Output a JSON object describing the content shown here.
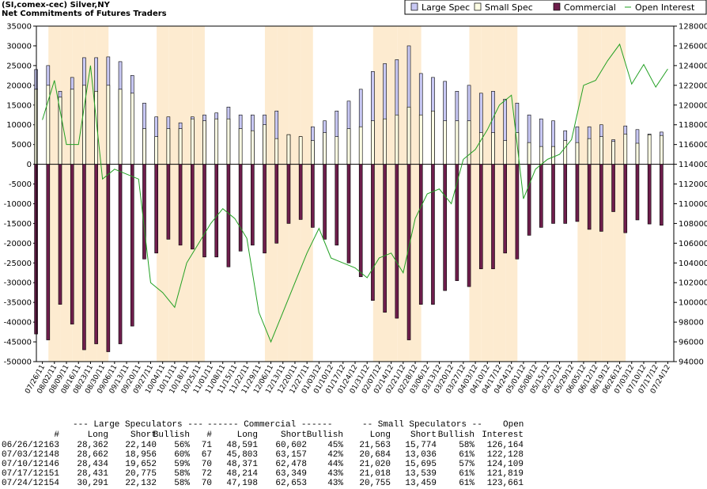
{
  "chart_data": {
    "type": "bar",
    "title": "(SI,comex-cec) Silver,NY",
    "subtitle": "Net Commitments of Futures Traders",
    "categories": [
      "07/26/11",
      "08/02/11",
      "08/09/11",
      "08/16/11",
      "08/23/11",
      "08/30/11",
      "09/06/11",
      "09/13/11",
      "09/20/11",
      "09/27/11",
      "10/04/11",
      "10/11/11",
      "10/18/11",
      "10/25/11",
      "11/01/11",
      "11/08/11",
      "11/15/11",
      "11/22/11",
      "11/29/11",
      "12/06/11",
      "12/13/11",
      "12/20/11",
      "12/27/11",
      "01/03/12",
      "01/10/12",
      "01/17/12",
      "01/24/12",
      "01/31/12",
      "02/07/12",
      "02/14/12",
      "02/21/12",
      "02/28/12",
      "03/06/12",
      "03/13/12",
      "03/20/12",
      "03/27/12",
      "04/03/12",
      "04/10/12",
      "04/17/12",
      "04/24/12",
      "05/01/12",
      "05/08/12",
      "05/15/12",
      "05/22/12",
      "05/29/12",
      "06/05/12",
      "06/12/12",
      "06/19/12",
      "06/26/12",
      "07/03/12",
      "07/10/12",
      "07/17/12",
      "07/24/12"
    ],
    "series": [
      {
        "name": "Large Spec",
        "color": "#c8c8f4",
        "values": [
          24000,
          25000,
          18500,
          22000,
          27000,
          27000,
          27200,
          26000,
          22500,
          15500,
          12000,
          12000,
          10500,
          12000,
          12500,
          13000,
          14500,
          12500,
          12500,
          12500,
          13500,
          7500,
          7000,
          9500,
          11000,
          13500,
          16000,
          19000,
          23500,
          25500,
          26500,
          30000,
          23000,
          22000,
          21000,
          18500,
          20000,
          18000,
          18500,
          16500,
          15500,
          12500,
          11500,
          11000,
          8500,
          9500,
          9500,
          10000,
          6222,
          9706,
          8782,
          7656,
          8159
        ]
      },
      {
        "name": "Small Spec",
        "color": "#fefee4",
        "values": [
          19000,
          20000,
          17000,
          19000,
          20000,
          18500,
          20000,
          19000,
          18000,
          9000,
          7000,
          9000,
          9000,
          11500,
          11000,
          11500,
          11500,
          9000,
          8500,
          10000,
          6500,
          7500,
          7000,
          6000,
          8000,
          7000,
          9000,
          9500,
          11000,
          11500,
          12500,
          14500,
          12500,
          13500,
          11000,
          11000,
          11000,
          8000,
          8000,
          6000,
          8000,
          5500,
          4500,
          4500,
          6000,
          5500,
          6500,
          7000,
          5789,
          7648,
          5325,
          7479,
          7296
        ]
      },
      {
        "name": "Commercial",
        "color": "#6e1e4c",
        "values": [
          -43000,
          -44500,
          -35500,
          -40500,
          -47000,
          -45500,
          -47500,
          -45500,
          -41000,
          -24000,
          -22500,
          -19000,
          -20500,
          -21500,
          -23500,
          -23500,
          -26000,
          -22000,
          -20500,
          -22500,
          -20000,
          -15000,
          -14000,
          -16000,
          -19000,
          -20500,
          -25000,
          -28500,
          -34500,
          -37500,
          -39000,
          -44500,
          -35500,
          -35500,
          -32000,
          -29500,
          -31000,
          -26500,
          -26500,
          -22500,
          -24000,
          -18000,
          -16000,
          -15000,
          -15000,
          -14500,
          -16500,
          -17000,
          -12011,
          -17354,
          -14107,
          -15135,
          -15455
        ]
      },
      {
        "name": "Open Interest",
        "color": "#22a022",
        "type": "line",
        "axis": "y2",
        "values": [
          118500,
          122500,
          116000,
          116000,
          124000,
          112500,
          113500,
          113000,
          112500,
          102000,
          101000,
          99500,
          104000,
          106000,
          108000,
          109500,
          108500,
          106500,
          99000,
          96000,
          99000,
          102000,
          105000,
          107500,
          104500,
          104000,
          103500,
          102500,
          104500,
          105000,
          103000,
          108500,
          111000,
          111500,
          110000,
          114500,
          115500,
          117500,
          120000,
          121000,
          110500,
          113500,
          114500,
          115000,
          116500,
          122000,
          122500,
          124500,
          126164,
          122128,
          124109,
          121819,
          123661
        ]
      }
    ],
    "ylim": [
      -50000,
      35000
    ],
    "yticks": [
      -50000,
      -45000,
      -40000,
      -35000,
      -30000,
      -25000,
      -20000,
      -15000,
      -10000,
      -5000,
      0,
      5000,
      10000,
      15000,
      20000,
      25000,
      30000,
      35000
    ],
    "y2lim": [
      94000,
      128000
    ],
    "y2ticks": [
      94000,
      96000,
      98000,
      100000,
      102000,
      104000,
      106000,
      108000,
      110000,
      112000,
      114000,
      116000,
      118000,
      120000,
      122000,
      124000,
      126000,
      128000
    ],
    "legend": "top-right",
    "grid": false,
    "band_color": "#fdebd0"
  },
  "table": {
    "header1": [
      "--- Large Speculators ---",
      "------ Commercial ------",
      "-- Small Speculators --",
      "Open"
    ],
    "header2": [
      "#",
      "Long",
      "Short",
      "Bullish",
      "#",
      "Long",
      "Short",
      "Bullish",
      "Long",
      "Short",
      "Bullish",
      "Interest"
    ],
    "rows": [
      [
        "06/26/12",
        "163",
        "28,362",
        "22,140",
        "56%",
        "71",
        "48,591",
        "60,602",
        "45%",
        "21,563",
        "15,774",
        "58%",
        "126,164"
      ],
      [
        "07/03/12",
        "148",
        "28,662",
        "18,956",
        "60%",
        "67",
        "45,803",
        "63,157",
        "42%",
        "20,684",
        "13,036",
        "61%",
        "122,128"
      ],
      [
        "07/10/12",
        "146",
        "28,434",
        "19,652",
        "59%",
        "70",
        "48,371",
        "62,478",
        "44%",
        "21,020",
        "15,695",
        "57%",
        "124,109"
      ],
      [
        "07/17/12",
        "151",
        "28,431",
        "20,775",
        "58%",
        "72",
        "48,214",
        "63,349",
        "43%",
        "21,018",
        "13,539",
        "61%",
        "121,819"
      ],
      [
        "07/24/12",
        "154",
        "30,291",
        "22,132",
        "58%",
        "70",
        "47,198",
        "62,653",
        "43%",
        "20,755",
        "13,459",
        "61%",
        "123,661"
      ]
    ]
  }
}
